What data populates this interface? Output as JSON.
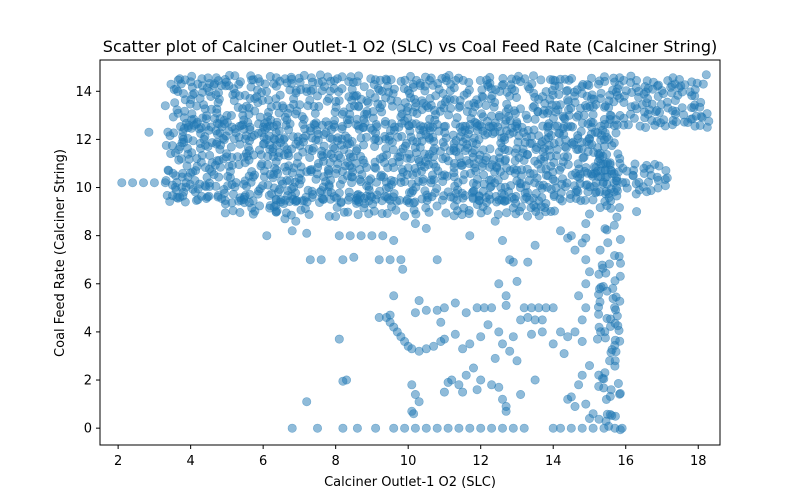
{
  "chart_data": {
    "type": "scatter",
    "title": "Scatter plot of Calciner Outlet-1 O2 (SLC) vs Coal Feed Rate (Calciner String)",
    "xlabel": "Calciner Outlet-1 O2 (SLC)",
    "ylabel": "Coal Feed Rate (Calciner String)",
    "xlim": [
      1.5,
      18.6
    ],
    "ylim": [
      -0.7,
      15.3
    ],
    "x_ticks": [
      2,
      4,
      6,
      8,
      10,
      12,
      14,
      16,
      18
    ],
    "y_ticks": [
      0,
      2,
      4,
      6,
      8,
      10,
      12,
      14
    ],
    "grid": false,
    "marker_color": "#1f77b4",
    "marker_alpha": 0.5,
    "regions": [
      {
        "x": [
          3.5,
          18.3
        ],
        "y": [
          12.6,
          14.6
        ],
        "density": 0.65
      },
      {
        "x": [
          3.4,
          15.5
        ],
        "y": [
          9.5,
          12.6
        ],
        "density": 0.75
      },
      {
        "x": [
          5.0,
          14.0
        ],
        "y": [
          8.9,
          9.6
        ],
        "density": 0.5
      },
      {
        "x": [
          15.0,
          17.2
        ],
        "y": [
          9.8,
          11.0
        ],
        "density": 0.5
      },
      {
        "x": [
          15.3,
          15.9
        ],
        "y": [
          0,
          12.5
        ],
        "density": 0.45
      }
    ],
    "points": [
      [
        2.1,
        10.2
      ],
      [
        2.4,
        10.2
      ],
      [
        2.7,
        10.2
      ],
      [
        3.0,
        10.2
      ],
      [
        3.3,
        10.2
      ],
      [
        3.5,
        10.1
      ],
      [
        2.85,
        12.3
      ],
      [
        3.6,
        9.9
      ],
      [
        3.7,
        9.6
      ],
      [
        4.2,
        9.5
      ],
      [
        4.0,
        10.6
      ],
      [
        3.9,
        10.9
      ],
      [
        3.8,
        12.0
      ],
      [
        3.3,
        13.4
      ],
      [
        6.3,
        9.2
      ],
      [
        6.6,
        8.7
      ],
      [
        6.9,
        8.6
      ],
      [
        6.1,
        8.0
      ],
      [
        6.8,
        8.2
      ],
      [
        7.2,
        8.1
      ],
      [
        8.1,
        8.0
      ],
      [
        8.4,
        8.0
      ],
      [
        8.7,
        8.0
      ],
      [
        9.0,
        8.0
      ],
      [
        9.3,
        8.0
      ],
      [
        9.6,
        7.8
      ],
      [
        10.2,
        8.5
      ],
      [
        10.5,
        8.3
      ],
      [
        11.7,
        8.0
      ],
      [
        12.4,
        8.6
      ],
      [
        12.6,
        7.8
      ],
      [
        12.8,
        7.0
      ],
      [
        12.9,
        6.9
      ],
      [
        13.3,
        6.9
      ],
      [
        13.5,
        7.6
      ],
      [
        14.2,
        8.2
      ],
      [
        14.4,
        7.9
      ],
      [
        7.3,
        7.0
      ],
      [
        7.6,
        7.0
      ],
      [
        8.2,
        7.0
      ],
      [
        8.5,
        7.1
      ],
      [
        9.2,
        7.0
      ],
      [
        9.5,
        7.0
      ],
      [
        9.8,
        7.0
      ],
      [
        9.85,
        6.6
      ],
      [
        10.8,
        7.0
      ],
      [
        12.5,
        6.0
      ],
      [
        12.7,
        5.5
      ],
      [
        12.7,
        5.1
      ],
      [
        12.3,
        5.0
      ],
      [
        12.1,
        5.0
      ],
      [
        11.9,
        5.0
      ],
      [
        11.6,
        4.8
      ],
      [
        11.3,
        5.2
      ],
      [
        11.0,
        5.0
      ],
      [
        10.8,
        4.9
      ],
      [
        10.5,
        4.9
      ],
      [
        10.3,
        5.3
      ],
      [
        10.2,
        4.8
      ],
      [
        9.6,
        5.5
      ],
      [
        13.0,
        6.1
      ],
      [
        13.2,
        5.0
      ],
      [
        13.4,
        5.0
      ],
      [
        13.6,
        5.0
      ],
      [
        13.8,
        5.0
      ],
      [
        14.0,
        5.0
      ],
      [
        13.3,
        4.6
      ],
      [
        13.5,
        4.5
      ],
      [
        13.7,
        4.5
      ],
      [
        13.1,
        4.5
      ],
      [
        9.4,
        4.6
      ],
      [
        9.5,
        4.4
      ],
      [
        9.6,
        4.2
      ],
      [
        9.7,
        4.0
      ],
      [
        9.8,
        3.8
      ],
      [
        9.9,
        3.6
      ],
      [
        10.0,
        3.4
      ],
      [
        10.1,
        3.3
      ],
      [
        10.3,
        3.2
      ],
      [
        10.5,
        3.3
      ],
      [
        10.7,
        3.4
      ],
      [
        10.9,
        3.6
      ],
      [
        9.2,
        4.6
      ],
      [
        9.5,
        4.7
      ],
      [
        8.1,
        3.7
      ],
      [
        8.3,
        2.0
      ],
      [
        8.2,
        1.95
      ],
      [
        10.1,
        1.8
      ],
      [
        10.2,
        1.4
      ],
      [
        10.3,
        1.1
      ],
      [
        10.1,
        0.7
      ],
      [
        10.15,
        0.6
      ],
      [
        11.0,
        1.5
      ],
      [
        11.2,
        2.0
      ],
      [
        11.4,
        1.8
      ],
      [
        11.6,
        2.2
      ],
      [
        11.8,
        2.5
      ],
      [
        12.0,
        2.0
      ],
      [
        12.3,
        1.8
      ],
      [
        12.5,
        1.7
      ],
      [
        12.6,
        1.2
      ],
      [
        12.7,
        0.9
      ],
      [
        12.7,
        0.7
      ],
      [
        13.1,
        1.4
      ],
      [
        13.5,
        2.0
      ],
      [
        11.9,
        1.6
      ],
      [
        11.5,
        1.5
      ],
      [
        11.1,
        1.9
      ],
      [
        11.7,
        3.5
      ],
      [
        11.5,
        3.3
      ],
      [
        11.3,
        3.9
      ],
      [
        11.0,
        3.7
      ],
      [
        10.9,
        4.4
      ],
      [
        12.2,
        4.3
      ],
      [
        12.0,
        3.8
      ],
      [
        12.5,
        4.0
      ],
      [
        12.6,
        3.5
      ],
      [
        12.8,
        3.2
      ],
      [
        13.0,
        2.8
      ],
      [
        12.4,
        2.9
      ],
      [
        12.9,
        3.8
      ],
      [
        13.4,
        3.9
      ],
      [
        14.0,
        3.5
      ],
      [
        13.7,
        4.0
      ],
      [
        14.2,
        4.0
      ],
      [
        14.4,
        3.8
      ],
      [
        14.3,
        3.1
      ],
      [
        14.6,
        4.0
      ],
      [
        14.8,
        3.6
      ],
      [
        14.8,
        4.5
      ],
      [
        14.9,
        5.0
      ],
      [
        14.7,
        5.5
      ],
      [
        14.9,
        6.0
      ],
      [
        15.0,
        6.5
      ],
      [
        14.9,
        7.0
      ],
      [
        14.6,
        7.4
      ],
      [
        14.8,
        7.7
      ],
      [
        14.5,
        8.0
      ],
      [
        14.9,
        8.5
      ],
      [
        15.0,
        8.9
      ],
      [
        14.9,
        7.9
      ],
      [
        15.0,
        2.6
      ],
      [
        14.8,
        2.2
      ],
      [
        14.7,
        1.8
      ],
      [
        14.5,
        1.3
      ],
      [
        14.4,
        1.2
      ],
      [
        14.9,
        1.0
      ],
      [
        15.1,
        0.6
      ],
      [
        15.0,
        0.4
      ],
      [
        14.6,
        0.9
      ],
      [
        16.3,
        9.0
      ],
      [
        16.0,
        10.2
      ],
      [
        16.5,
        10.8
      ],
      [
        16.7,
        10.5
      ],
      [
        16.9,
        10.3
      ],
      [
        7.2,
        1.1
      ],
      [
        6.8,
        0.0
      ],
      [
        7.5,
        0.0
      ],
      [
        8.2,
        0.0
      ],
      [
        8.6,
        0.0
      ],
      [
        9.1,
        0.0
      ],
      [
        9.6,
        0.0
      ],
      [
        9.9,
        0.0
      ],
      [
        10.2,
        0.0
      ],
      [
        10.5,
        0.0
      ],
      [
        10.8,
        0.0
      ],
      [
        11.1,
        0.0
      ],
      [
        11.4,
        0.0
      ],
      [
        11.7,
        0.0
      ],
      [
        12.0,
        0.0
      ],
      [
        12.3,
        0.0
      ],
      [
        12.6,
        0.0
      ],
      [
        12.9,
        0.0
      ],
      [
        13.2,
        0.0
      ],
      [
        14.0,
        0.0
      ],
      [
        14.2,
        0.0
      ],
      [
        14.5,
        0.0
      ],
      [
        14.8,
        0.0
      ],
      [
        15.1,
        0.0
      ],
      [
        15.4,
        0.0
      ],
      [
        15.7,
        0.0
      ],
      [
        15.9,
        0.0
      ]
    ]
  }
}
